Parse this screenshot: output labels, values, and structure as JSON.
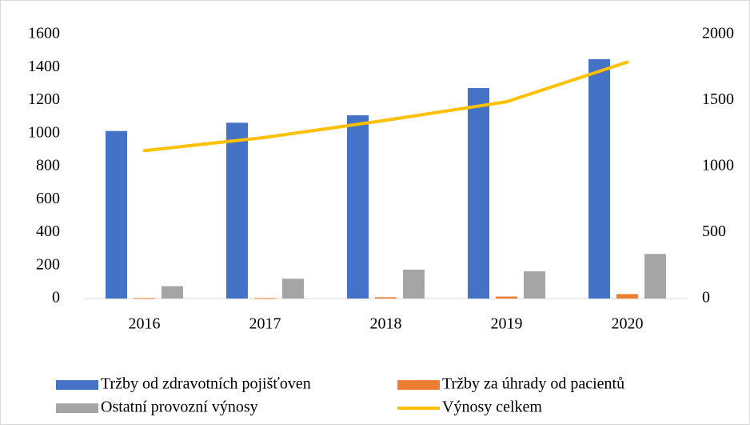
{
  "chart_data": {
    "type": "bar",
    "categories": [
      "2016",
      "2017",
      "2018",
      "2019",
      "2020"
    ],
    "series": [
      {
        "name": "Tržby od zdravotních pojišťoven",
        "color": "#4472c4",
        "values": [
          1015,
          1065,
          1110,
          1275,
          1450
        ]
      },
      {
        "name": "Tržby za úhrady od pacientů",
        "color": "#ed7d31",
        "values": [
          3,
          3,
          8,
          12,
          27
        ]
      },
      {
        "name": "Ostatní provozní výnosy",
        "color": "#a5a5a5",
        "values": [
          75,
          120,
          175,
          165,
          270
        ]
      },
      {
        "name": "Výnosy celkem",
        "color": "#ffc000",
        "type": "line",
        "axis": "y2",
        "values": [
          1120,
          1220,
          1350,
          1490,
          1790
        ]
      }
    ],
    "ylim": [
      0,
      1600
    ],
    "yticks": [
      0,
      200,
      400,
      600,
      800,
      1000,
      1200,
      1400,
      1600
    ],
    "y2lim": [
      0,
      2000
    ],
    "y2ticks": [
      0,
      500,
      1000,
      1500,
      2000
    ],
    "grid": false,
    "legend": "bottom"
  }
}
